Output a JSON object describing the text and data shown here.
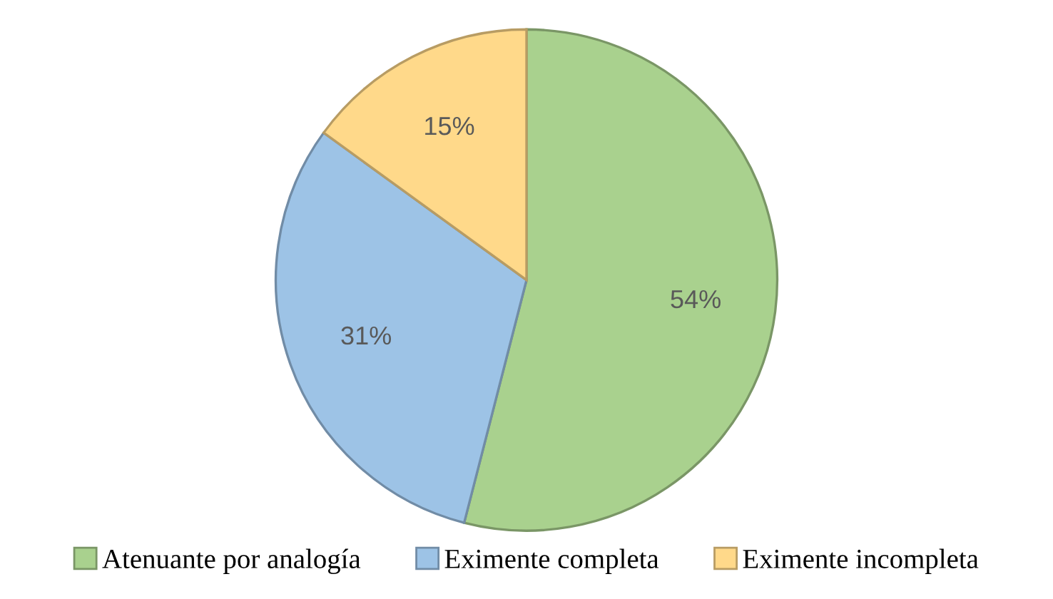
{
  "chart_data": {
    "type": "pie",
    "categories": [
      "Atenuante por analogía",
      "Eximente completa",
      "Eximente incompleta"
    ],
    "values": [
      54,
      31,
      15
    ],
    "value_labels": [
      "54%",
      "31%",
      "15%"
    ],
    "colors": [
      "#a9d18e",
      "#9dc3e6",
      "#ffd98a"
    ],
    "legend": "bottom"
  }
}
